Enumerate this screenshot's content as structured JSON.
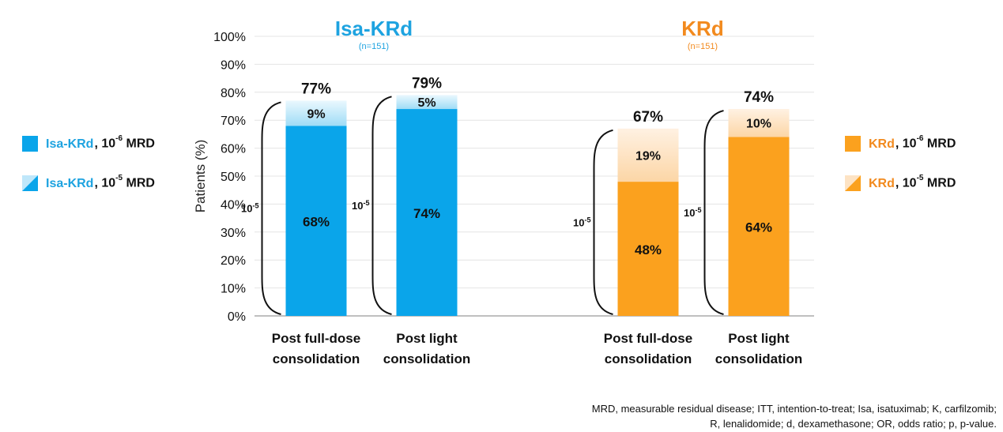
{
  "colors": {
    "isa_dark": "#0aa5ea",
    "isa_light": "#bfe7fa",
    "krd_dark": "#fba11e",
    "krd_light": "#fde3c4",
    "isa_title": "#1ea3e0",
    "krd_title": "#f28a1e"
  },
  "legend": {
    "isa_deep": {
      "arm": "Isa-KRd",
      "text": ", 10",
      "sup": "-6",
      "suffix": " MRD"
    },
    "isa_shallow": {
      "arm": "Isa-KRd",
      "text": ", 10",
      "sup": "-5",
      "suffix": " MRD"
    },
    "krd_deep": {
      "arm": "KRd",
      "text": ", 10",
      "sup": "-6",
      "suffix": " MRD"
    },
    "krd_shallow": {
      "arm": "KRd",
      "text": ", 10",
      "sup": "-5",
      "suffix": " MRD"
    }
  },
  "footnote": "MRD, measurable residual disease; ITT, intention-to-treat; Isa, isatuximab; K, carfilzomib; R, lenalidomide; d, dexamethasone; OR, odds ratio; p, p-value.",
  "chart_data": {
    "type": "bar",
    "stacked": true,
    "ylabel": "Patients (%)",
    "ylim": [
      0,
      100
    ],
    "yticks": [
      "0%",
      "10%",
      "20%",
      "30%",
      "40%",
      "50%",
      "60%",
      "70%",
      "80%",
      "90%",
      "100%"
    ],
    "grid": true,
    "groups": [
      {
        "title": "Isa-KRd",
        "subtitle": "(n=151)",
        "bars": [
          {
            "category_line1": "Post full-dose",
            "category_line2": "consolidation",
            "deep": 68,
            "shallow": 9,
            "total": 77,
            "deep_label": "68%",
            "shallow_label": "9%",
            "total_label": "77%",
            "bracket_base": "10",
            "bracket_exp": "-5"
          },
          {
            "category_line1": "Post light",
            "category_line2": "consolidation",
            "deep": 74,
            "shallow": 5,
            "total": 79,
            "deep_label": "74%",
            "shallow_label": "5%",
            "total_label": "79%",
            "bracket_base": "10",
            "bracket_exp": "-5"
          }
        ]
      },
      {
        "title": "KRd",
        "subtitle": "(n=151)",
        "bars": [
          {
            "category_line1": "Post full-dose",
            "category_line2": "consolidation",
            "deep": 48,
            "shallow": 19,
            "total": 67,
            "deep_label": "48%",
            "shallow_label": "19%",
            "total_label": "67%",
            "bracket_base": "10",
            "bracket_exp": "-5"
          },
          {
            "category_line1": "Post light",
            "category_line2": "consolidation",
            "deep": 64,
            "shallow": 10,
            "total": 74,
            "deep_label": "64%",
            "shallow_label": "10%",
            "total_label": "74%",
            "bracket_base": "10",
            "bracket_exp": "-5"
          }
        ]
      }
    ],
    "series": [
      {
        "name": "Isa-KRd, 10-6 MRD"
      },
      {
        "name": "Isa-KRd, 10-5 MRD"
      },
      {
        "name": "KRd, 10-6 MRD"
      },
      {
        "name": "KRd, 10-5 MRD"
      }
    ]
  }
}
